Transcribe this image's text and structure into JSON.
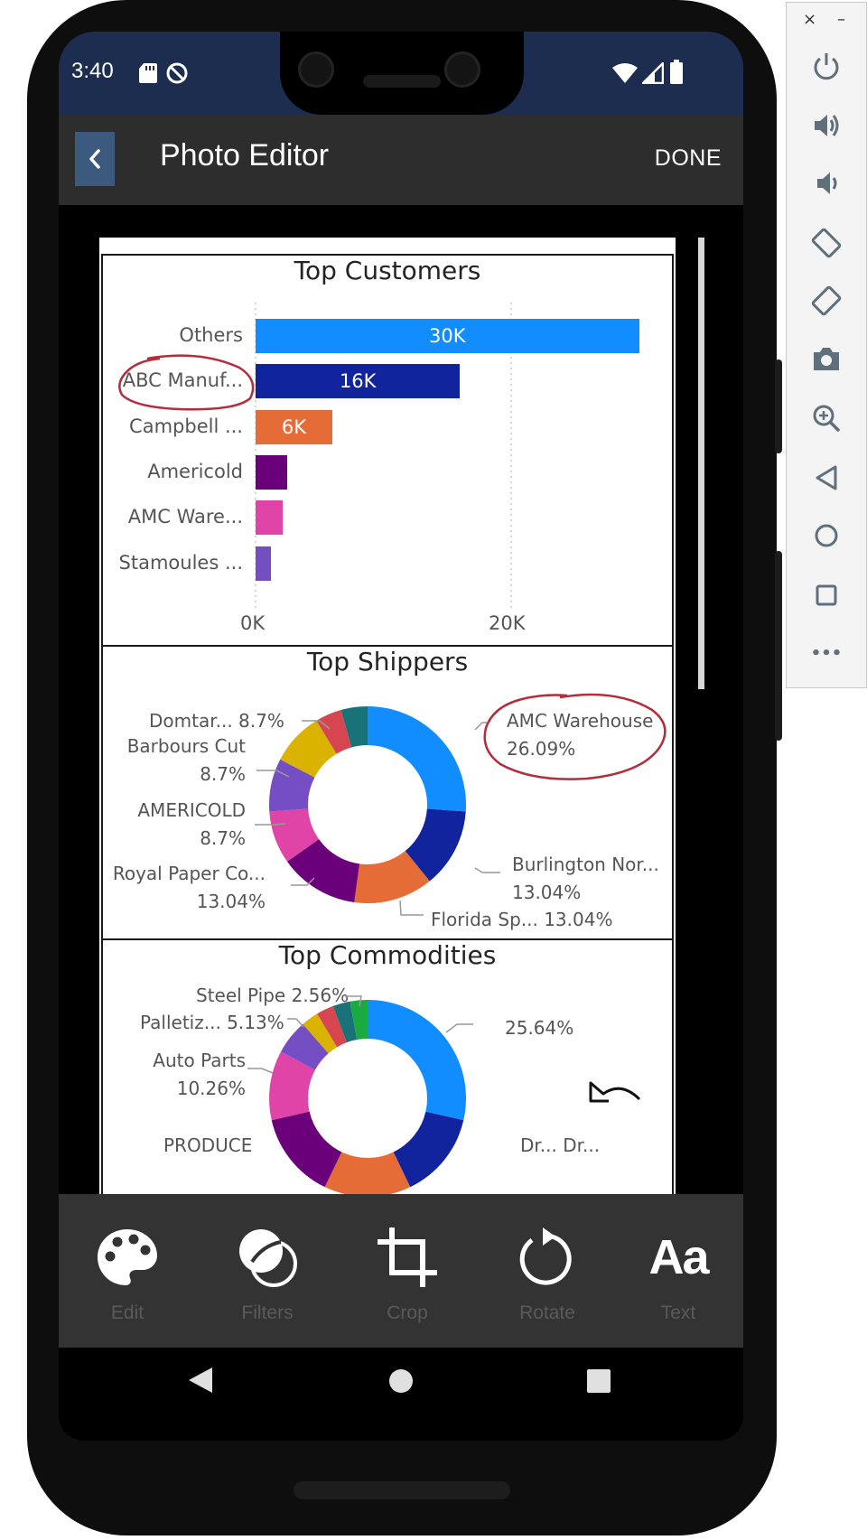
{
  "status_bar": {
    "time": "3:40"
  },
  "app_bar": {
    "title": "Photo Editor",
    "done_label": "DONE"
  },
  "top_customers": {
    "title": "Top Customers",
    "chart_data": {
      "type": "bar",
      "orientation": "horizontal",
      "title": "Top Customers",
      "categories": [
        "Others",
        "ABC Manuf...",
        "Campbell ...",
        "Americold",
        "AMC Ware...",
        "Stamoules ..."
      ],
      "values": [
        30000,
        16000,
        6000,
        2500,
        2100,
        1200
      ],
      "data_labels": [
        "30K",
        "16K",
        "6K",
        "",
        "",
        ""
      ],
      "colors": [
        "#118DFF",
        "#12239E",
        "#E66C37",
        "#6B007B",
        "#E044A7",
        "#744EC2"
      ],
      "xlim": [
        0,
        30500
      ],
      "xticks": [
        "0K",
        "20K"
      ],
      "grid": "vertical dotted"
    }
  },
  "top_shippers": {
    "title": "Top Shippers",
    "chart_data": {
      "type": "pie",
      "donut": true,
      "title": "Top Shippers",
      "slices": [
        {
          "label": "AMC Warehouse",
          "percent": 26.09,
          "color": "#118DFF"
        },
        {
          "label": "Burlington Nor...",
          "percent": 13.04,
          "color": "#12239E"
        },
        {
          "label": "Florida Sp...",
          "percent": 13.04,
          "color": "#E66C37"
        },
        {
          "label": "Royal Paper Co...",
          "percent": 13.04,
          "color": "#6B007B"
        },
        {
          "label": "AMERICOLD",
          "percent": 8.7,
          "color": "#E044A7"
        },
        {
          "label": "Barbours Cut",
          "percent": 8.7,
          "color": "#744EC2"
        },
        {
          "label": "Domtar...",
          "percent": 8.7,
          "color": "#D9B300"
        },
        {
          "label": "",
          "percent": 4.35,
          "color": "#D64550"
        },
        {
          "label": "",
          "percent": 4.35,
          "color": "#197278"
        }
      ],
      "text_labels": {
        "amc": [
          "AMC Warehouse",
          "26.09%"
        ],
        "burlington": [
          "Burlington Nor...",
          "13.04%"
        ],
        "florida": "Florida Sp... 13.04%",
        "royal": [
          "Royal Paper Co...",
          "13.04%"
        ],
        "americold": [
          "AMERICOLD",
          "8.7%"
        ],
        "barbours": [
          "Barbours Cut",
          "8.7%"
        ],
        "domtar": "Domtar... 8.7%"
      }
    }
  },
  "top_commodities": {
    "title": "Top Commodities",
    "chart_data": {
      "type": "pie",
      "donut": true,
      "title": "Top Commodities",
      "slices": [
        {
          "label": "",
          "percent": 25.64,
          "color": "#118DFF"
        },
        {
          "label": "",
          "percent": 12.82,
          "color": "#12239E"
        },
        {
          "label": "",
          "percent": 12.82,
          "color": "#E66C37"
        },
        {
          "label": "PRODUCE",
          "percent": 12.82,
          "color": "#6B007B"
        },
        {
          "label": "Auto Parts",
          "percent": 10.26,
          "color": "#E044A7"
        },
        {
          "label": "Palletiz...",
          "percent": 5.13,
          "color": "#744EC2"
        },
        {
          "label": "Steel Pipe",
          "percent": 2.56,
          "color": "#D9B300"
        },
        {
          "label": "",
          "percent": 2.56,
          "color": "#D64550"
        },
        {
          "label": "",
          "percent": 2.56,
          "color": "#197278"
        },
        {
          "label": "",
          "percent": 2.56,
          "color": "#1AAB40"
        }
      ],
      "text_labels": {
        "first": "25.64%",
        "steel": "Steel Pipe 2.56%",
        "pallet": "Palletiz... 5.13%",
        "auto": [
          "Auto Parts",
          "10.26%"
        ],
        "produce": "PRODUCE",
        "cut": "Dr... Dr..."
      }
    }
  },
  "tools": [
    {
      "label": "Edit",
      "icon": "palette-icon"
    },
    {
      "label": "Filters",
      "icon": "filters-icon"
    },
    {
      "label": "Crop",
      "icon": "crop-icon"
    },
    {
      "label": "Rotate",
      "icon": "rotate-icon"
    },
    {
      "label": "Text",
      "icon": "text-icon",
      "glyph": "Aa"
    }
  ],
  "emulator": {
    "close": "×",
    "minimize": "–",
    "more": "•••"
  }
}
